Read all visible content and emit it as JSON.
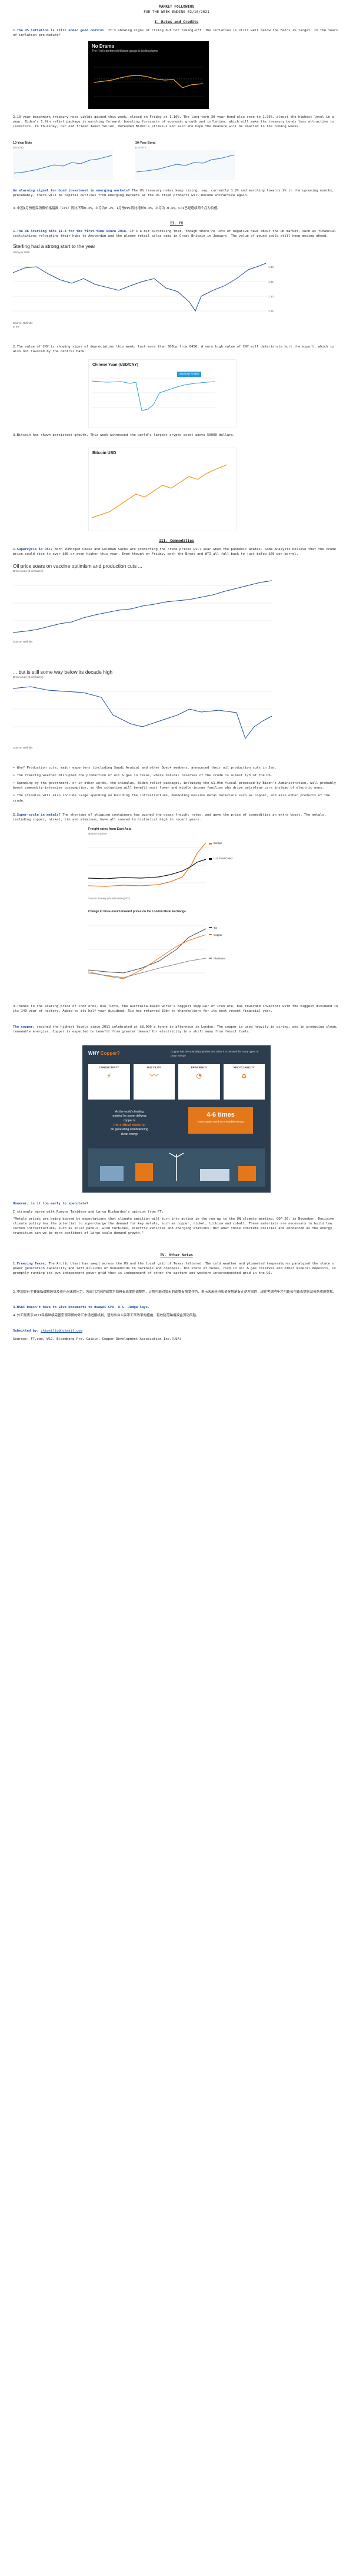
{
  "header": {
    "title": "MARKET FOLLOWING",
    "week": "FOR THE WEEK ENDING 02/10/2021"
  },
  "sections": {
    "s1": "I. Rates and Credits",
    "s2": "II. FX",
    "s3": "III. Commodities",
    "s4": "IV. Other Notes"
  },
  "rates": {
    "p1_lead": "1.The US inflation is still under good control.",
    "p1_body": "It's showing signs of rising but not taking-off. The inflation is still well below the Fed's 2% target. In the fears of inflation pre-mature?",
    "chart_title": "No Drama",
    "chart_subtitle": "The Fed's preferred inflation gauge is looking tame",
    "p2": "2.10-year benchmark treasury note yields gained this week, closed on Friday at 1.16%. The long-term 30 year bond also rose to 1.93%, almost the highest level in a year. Biden's 1.9tn relief package is marching forward, boosting forecasts of economic growth and inflation, which will make the treasury bonds less attractive to investors. In Thursday, our old friend Janet Yellen, defended Biden's stimulus and said she hope the measure will be enacted in the coming weeks.",
    "t10_title": "10-Year Note",
    "t10_sub": "(US10Y)",
    "t30_title": "30-Year Bond",
    "t30_sub": "(US30Y)",
    "p3_lead": "An alarming signal for bond investment in emerging markets?",
    "p3_body": " The US treasury notes keep rising, say, currently 1.2% and marching towards 2% in the upcoming months, presumably, there will be capital outflows from emerging markets as the US fixed products will become attractive again.",
    "p4": "3.中国1月份居民消费价格指数（CPI）同比下降0.3%，上月为0.2%，1月份PPI同比增长0.3%，上月为-0.4%，CPI已经连续两个月为负值。"
  },
  "fx": {
    "p1_lead": "1.The UK Sterling hits $1.4 for the first time since 2018.",
    "p1_body": " It's a bit surprising that, though there're lots of negative news about the UK market, such as financial institutions relocating their hubs to Amsterdam and the gloomy retail sales data in Great Britain in January. The value of pound could still keep moving ahead.",
    "gbp_title": "Sterling had a strong start to the year",
    "gbp_ylabel": "USD per GBP",
    "gbp_source": "Source: Refinitiv",
    "gbp_ft": "© FT",
    "p2": "2.The value of CNY is showing signs of depreciation this week, last more than 300bp from 6456. A very high value of CNY will deteriorate hurt the export, which is also not favored by the central bank.",
    "cny_title": "Chinese Yuan (USD/CNY)",
    "cny_badge": "USD/CNY 6.4567",
    "p3": "3.Bitcoin has shown persistent growth. This week witnessed the world's largest crypto asset above 50000 dollars.",
    "btc_title": "Bitcoin USD"
  },
  "comm": {
    "p1_lead": "1.Supercycle in Oil?",
    "p1_body": " Both JPMorgan Chase and Goldman Sachs are predicting the crude prices will soar when the pandemic abates. Some Analysts believe that the crude price could rise to over $80 or even higher this year. Even though on Friday, both the Brent and WTI all fall back to just below $60 per barrel.",
    "oil1_title": "Oil price soars on vaccine optimism and production cuts ...",
    "oil1_sub": "Brent crude ($ per barrel)",
    "oil_source": "Source: Refinitiv",
    "oil2_title": "... but is still some way below its decade high",
    "oil2_sub": "Brent crude ($ per barrel)",
    "bullets": [
      "• Why? Production cuts: major exporters (including Saudi Arabia) and other Opec+ members, announced their oil production cuts in Jan.",
      "• The freezing weather disrupted the production of oil & gas in Texas, where natural reserves of the crude is almost 1/3 of the US.",
      "• Spending by the government, or in other words, the stimulus. Biden relief packages, including the $1.9tn fiscal proposed by Biden's Administration, will probably boost commodity-intensive consumption, so the situation will benefit most lower and middle-income families who drive petroleum cars instead of electric ones.",
      "• The stimulus will also include large spending on building the infrastructure, demanding massive metal materials such as copper, and also other products of the crude."
    ],
    "p2_lead": "2.Super-cycle in metals?",
    "p2_body": " The shortage of shipping containers has pushed the ocean freight rates, and gave the price of commodities an extra boost. The metals, including copper, nickel, tin and aluminum, have all soared to historical high in recent years.",
    "freight_title": "Freight rates from East Asia",
    "freight_sub": "$000s/container",
    "freight_legend": [
      "Europe",
      "U.S. East Coast"
    ],
    "freight_source": "Source: Drewry (via Bloomberg/FT)",
    "metal_title": "Change in three-month forward prices on the London Metal Exchange",
    "metal_legend": [
      "Tin",
      "Copper",
      "Aluminum"
    ],
    "p3": "3.Thanks to the soaring price of iron ores, Rio Tinto, the Australia-based world's biggest supplier of iron ore, has rewarded investors with the biggest dividend in its 149-year of history. Added to its half-year dividend, Rio has returned $9bn to shareholders for its most recent financial year.",
    "p4_lead": "The copper:",
    "p4_body": " reached the highest levels since 2011 celebrated at $8,000 a tonne in afternoon in London. The copper is used heavily in wiring, and in producing clean, renewable energies. Copper is expected to benefit from greater demand for electricity in a shift away from fossil fuels.",
    "copper_title": "WHY",
    "copper_title2": "Copper?",
    "copper_intro": "Copper has the special properties that allow it to be used for many types of clean energy",
    "copper_props": [
      "CONDUCTIVITY",
      "DUCTILITY",
      "EFFICIENCY",
      "RECYCLABILITY"
    ],
    "copper_mid_l1": "As the world's leading",
    "copper_mid_l2": "material for power delivery,",
    "copper_mid_l3": "copper is",
    "copper_mid_l4": "the critical material",
    "copper_mid_l5": "for generating and delivering",
    "copper_mid_l6": "clean energy",
    "copper_tag": "4-6 times",
    "copper_tag2": "more copper used in renewable energy",
    "q_head": "However, is it too early to speculate?",
    "q_body": "I strongly agree with Rumuna Tahidese and Larva Richardes's opinion from FT:",
    "quote": "\"Metals prices are being buoyed by expectations that climate ambition will turn into action in the run-up to the UN climate meeting, COP 26, in November. Decisive climate policy has the potential to supercharge the demand for key metals, such as copper, nickel, lithium and cobalt. These materials are necessary to build low carbon infrastructure, such as solar panels, wind turbines, electric vehicles and charging stations. But what those concrete policies are announced as the energy transition can we be more confident of large scale demand growth.\""
  },
  "notes": {
    "p1_lead": "1.Freezing Texas:",
    "p1_body": " The Arctic blast has swept across the US and the local grid of Texas faltered. The cold weather and plummeted temperatures paralyzed the state's power generation capability and left millions of households in darkness and coldness. The state of Texas, rich in oil & gas reserves and other mineral deposits, is promptly running its own independent power grid that is independent of other the eastern and western interconnected grid in the US.",
    "p2": "2.中国央行主要面临缓解信贷及资产泡沫的压力，各部门之间的政策方向具有高度的调整性，让我可能对货币的调整有放宽作为，表示未来经济和资金将是有正逆方向的，现在考虑明年才可能会可能去提前及债务收缩宽松。",
    "p3_lead": "3.HSBC Doesn't Have to Give Documents to Huawei CFO, U.S. Judge Says.",
    "p4": "4.外汇局表示2021年将继续完善宏观审慎的外汇市场进展机制，适时出台人民币汇率改革的措施，有效防范跨境资金流动风险。",
    "sub_lead": "Submitted by:",
    "sub_email": "zhiweiliu@hotmail.com",
    "sources": "Sources: FT.com, WSJ, Bloomberg Pro, Caixin, Copper Development Association Inc.(USA)"
  },
  "chart_data": [
    {
      "type": "line",
      "title": "No Drama",
      "subtitle": "The Fed's preferred inflation gauge is looking tame",
      "x": [
        "2016",
        "2017",
        "2018",
        "2019",
        "2020",
        "2021"
      ],
      "values": [
        1.6,
        1.9,
        2.0,
        1.6,
        1.3,
        1.4
      ],
      "ylim": [
        0,
        3
      ]
    },
    {
      "type": "line",
      "title": "10-Year Note",
      "series": [
        {
          "name": "US10Y",
          "values": [
            0.91,
            0.95,
            1.08,
            1.1,
            1.04,
            1.09,
            1.16
          ]
        }
      ]
    },
    {
      "type": "line",
      "title": "30-Year Bond",
      "series": [
        {
          "name": "US30Y",
          "values": [
            1.65,
            1.7,
            1.84,
            1.87,
            1.82,
            1.88,
            1.93
          ]
        }
      ]
    },
    {
      "type": "line",
      "title": "Sterling had a strong start to the year",
      "ylabel": "USD per GBP",
      "x": [
        "2018",
        "2019",
        "2020",
        "2021"
      ],
      "values": [
        1.4,
        1.28,
        1.22,
        1.38
      ],
      "ylim": [
        1.15,
        1.45
      ]
    },
    {
      "type": "line",
      "title": "Chinese Yuan (USD/CNY)",
      "x": [
        "Feb 08",
        "Feb 09",
        "Feb 10",
        "Feb 11",
        "Feb 12"
      ],
      "values": [
        6.456,
        6.46,
        6.42,
        6.446,
        6.457
      ]
    },
    {
      "type": "line",
      "title": "Bitcoin USD",
      "values": [
        30000,
        38000,
        45000,
        48000,
        52000
      ]
    },
    {
      "type": "line",
      "title": "Oil price soars on vaccine optimism and production cuts ...",
      "ylabel": "Brent crude ($ per barrel)",
      "x": [
        "Nov 2020",
        "Dec",
        "Jan 2021",
        "Feb"
      ],
      "values": [
        40,
        48,
        55,
        61
      ],
      "ylim": [
        35,
        65
      ]
    },
    {
      "type": "line",
      "title": "... but is still some way below its decade high",
      "ylabel": "Brent crude ($ per barrel)",
      "x": [
        "2012",
        "2013",
        "2014",
        "2015",
        "2016",
        "2017",
        "2018",
        "2019",
        "2020",
        "2021"
      ],
      "values": [
        110,
        108,
        100,
        55,
        45,
        55,
        70,
        62,
        40,
        60
      ],
      "ylim": [
        0,
        130
      ]
    },
    {
      "type": "line",
      "title": "Freight rates from East Asia",
      "series": [
        {
          "name": "Europe",
          "values": [
            1.5,
            1.4,
            1.6,
            1.5,
            2.5,
            4.5,
            8.0
          ]
        },
        {
          "name": "U.S. East Coast",
          "values": [
            2.5,
            2.4,
            2.6,
            2.5,
            3.2,
            4.0,
            4.8
          ]
        }
      ],
      "ylim": [
        0,
        10
      ]
    },
    {
      "type": "line",
      "title": "Change in three-month forward prices on the London Metal Exchange",
      "series": [
        {
          "name": "Tin",
          "values": [
            0,
            5,
            15,
            30,
            45
          ]
        },
        {
          "name": "Copper",
          "values": [
            0,
            8,
            20,
            35,
            40
          ]
        },
        {
          "name": "Aluminum",
          "values": [
            0,
            3,
            8,
            15,
            20
          ]
        }
      ]
    }
  ]
}
